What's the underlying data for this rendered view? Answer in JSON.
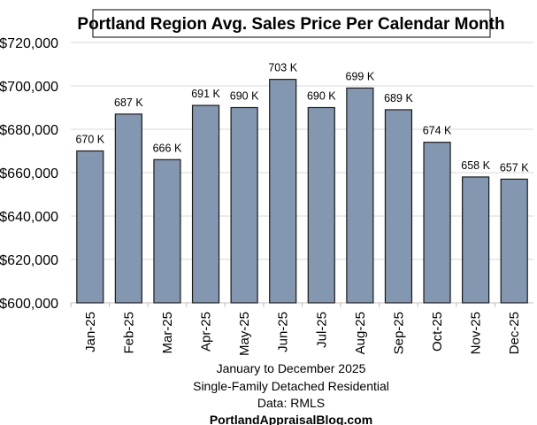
{
  "chart_data": {
    "type": "bar",
    "title": "Portland Region Avg. Sales Price Per Calendar Month",
    "categories": [
      "Jan-25",
      "Feb-25",
      "Mar-25",
      "Apr-25",
      "May-25",
      "Jun-25",
      "Jul-25",
      "Aug-25",
      "Sep-25",
      "Oct-25",
      "Nov-25",
      "Dec-25"
    ],
    "values": [
      670000,
      687000,
      666000,
      691000,
      690000,
      703000,
      690000,
      699000,
      689000,
      674000,
      658000,
      657000
    ],
    "data_labels": [
      "670 K",
      "687 K",
      "666 K",
      "691 K",
      "690 K",
      "703 K",
      "690 K",
      "699 K",
      "689 K",
      "674 K",
      "658 K",
      "657 K"
    ],
    "ylim": [
      600000,
      720000
    ],
    "yticks": [
      600000,
      620000,
      640000,
      660000,
      680000,
      700000,
      720000
    ],
    "ytick_labels": [
      "$600,000",
      "$620,000",
      "$640,000",
      "$660,000",
      "$680,000",
      "$700,000",
      "$720,000"
    ],
    "grid": true,
    "legend": "none",
    "bar_color": "#8497b0",
    "xlabel_lines": [
      "January to December 2025",
      "Single-Family Detached Residential",
      "Data: RMLS"
    ],
    "source": "PortlandAppraisalBlog.com"
  }
}
